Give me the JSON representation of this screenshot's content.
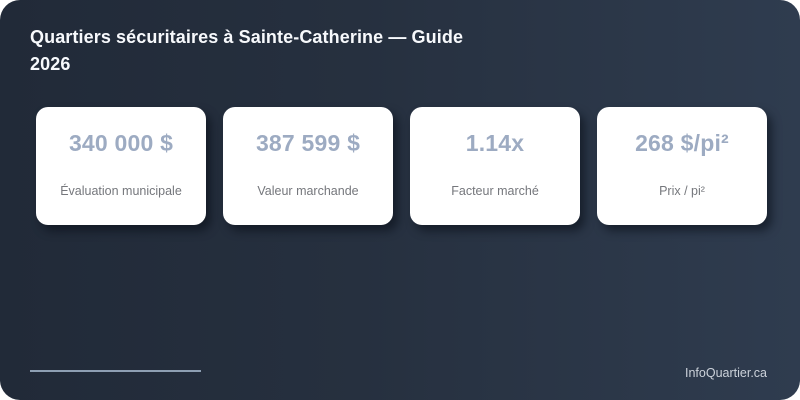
{
  "page": {
    "title_line1": "Quartiers sécuritaires à Sainte-Catherine — Guide",
    "title_line2": "2026"
  },
  "cards": [
    {
      "value": "340 000 $",
      "label": "Évaluation municipale"
    },
    {
      "value": "387 599 $",
      "label": "Valeur marchande"
    },
    {
      "value": "1.14x",
      "label": "Facteur marché"
    },
    {
      "value": "268 $/pi²",
      "label": "Prix / pi²"
    }
  ],
  "footer": {
    "brand": "InfoQuartier.ca"
  },
  "colors": {
    "background_start": "#212a38",
    "background_end": "#2f3c4f",
    "title_text": "#f7f9fc",
    "card_background": "#ffffff",
    "card_value": "#9dabc2",
    "card_label": "#75777c",
    "divider_line": "#8e9fb3",
    "brand_text": "#ccd2da"
  }
}
